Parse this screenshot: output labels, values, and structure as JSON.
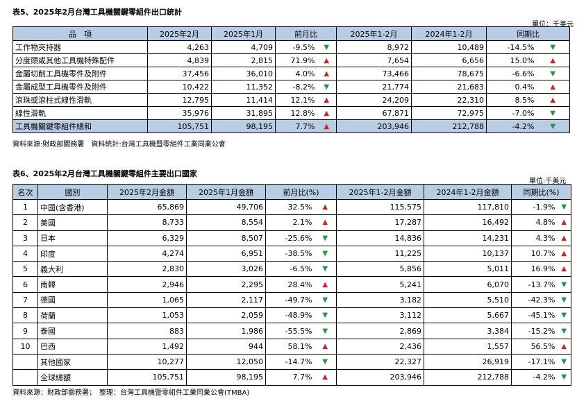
{
  "table5": {
    "caption": "表5、2025年2月台灣工具機關鍵零組件出口統計",
    "unit": "單位：千美元",
    "headers": [
      "品　項",
      "2025年2月",
      "2025年1月",
      "前月比",
      "2025年1-2月",
      "2024年1-2月",
      "同期比"
    ],
    "rows": [
      {
        "item": "工作物夾持器",
        "feb25": "4,263",
        "jan25": "4,709",
        "mom": "-9.5%",
        "mom_dir": "down",
        "ytd25": "8,972",
        "ytd24": "10,489",
        "yoy": "-14.5%",
        "yoy_dir": "down"
      },
      {
        "item": "分度頭或其他工具機特殊配件",
        "feb25": "4,839",
        "jan25": "2,815",
        "mom": "71.9%",
        "mom_dir": "up",
        "ytd25": "7,654",
        "ytd24": "6,656",
        "yoy": "15.0%",
        "yoy_dir": "up"
      },
      {
        "item": "金屬切削工具機零件及附件",
        "feb25": "37,456",
        "jan25": "36,010",
        "mom": "4.0%",
        "mom_dir": "up",
        "ytd25": "73,466",
        "ytd24": "78,675",
        "yoy": "-6.6%",
        "yoy_dir": "down"
      },
      {
        "item": "金屬成型工具機零件及附件",
        "feb25": "10,422",
        "jan25": "11,352",
        "mom": "-8.2%",
        "mom_dir": "down",
        "ytd25": "21,774",
        "ytd24": "21,683",
        "yoy": "0.4%",
        "yoy_dir": "up"
      },
      {
        "item": "滾珠或滾柱式線性滑軌",
        "feb25": "12,795",
        "jan25": "11,414",
        "mom": "12.1%",
        "mom_dir": "up",
        "ytd25": "24,209",
        "ytd24": "22,310",
        "yoy": "8.5%",
        "yoy_dir": "up"
      },
      {
        "item": "線性滑軌",
        "feb25": "35,976",
        "jan25": "31,895",
        "mom": "12.8%",
        "mom_dir": "up",
        "ytd25": "67,871",
        "ytd24": "72,975",
        "yoy": "-7.0%",
        "yoy_dir": "down"
      }
    ],
    "total": {
      "item": "工具機關鍵零組件總和",
      "feb25": "105,751",
      "jan25": "98,195",
      "mom": "7.7%",
      "mom_dir": "up",
      "ytd25": "203,946",
      "ytd24": "212,788",
      "yoy": "-4.2%",
      "yoy_dir": "down"
    },
    "source": "資料來源:財政部關務署　資料統計:台灣工具機暨零組件工業同業公會"
  },
  "table6": {
    "caption": "表6、2025年2月台灣工具機關鍵零組件主要出口國家",
    "unit": "單位:千美元",
    "headers": [
      "名次",
      "國別",
      "2025年2月金額",
      "2025年1月金額",
      "前月比(%)",
      "2025年1-2月金額",
      "2024年1-2月金額",
      "同期比(%)"
    ],
    "rows": [
      {
        "rank": "1",
        "country": "中國(含香港)",
        "feb25": "65,869",
        "jan25": "49,706",
        "mom": "32.5%",
        "mom_dir": "up",
        "ytd25": "115,575",
        "ytd24": "117,810",
        "yoy": "-1.9%",
        "yoy_dir": "down"
      },
      {
        "rank": "2",
        "country": "美國",
        "feb25": "8,733",
        "jan25": "8,554",
        "mom": "2.1%",
        "mom_dir": "up",
        "ytd25": "17,287",
        "ytd24": "16,492",
        "yoy": "4.8%",
        "yoy_dir": "up"
      },
      {
        "rank": "3",
        "country": "日本",
        "feb25": "6,329",
        "jan25": "8,507",
        "mom": "-25.6%",
        "mom_dir": "down",
        "ytd25": "14,836",
        "ytd24": "14,231",
        "yoy": "4.3%",
        "yoy_dir": "up"
      },
      {
        "rank": "4",
        "country": "印度",
        "feb25": "4,274",
        "jan25": "6,951",
        "mom": "-38.5%",
        "mom_dir": "down",
        "ytd25": "11,225",
        "ytd24": "10,137",
        "yoy": "10.7%",
        "yoy_dir": "up"
      },
      {
        "rank": "5",
        "country": "義大利",
        "feb25": "2,830",
        "jan25": "3,026",
        "mom": "-6.5%",
        "mom_dir": "down",
        "ytd25": "5,856",
        "ytd24": "5,011",
        "yoy": "16.9%",
        "yoy_dir": "up"
      },
      {
        "rank": "6",
        "country": "南韓",
        "feb25": "2,946",
        "jan25": "2,295",
        "mom": "28.4%",
        "mom_dir": "up",
        "ytd25": "5,241",
        "ytd24": "6,070",
        "yoy": "-13.7%",
        "yoy_dir": "down"
      },
      {
        "rank": "7",
        "country": "德國",
        "feb25": "1,065",
        "jan25": "2,117",
        "mom": "-49.7%",
        "mom_dir": "down",
        "ytd25": "3,182",
        "ytd24": "5,510",
        "yoy": "-42.3%",
        "yoy_dir": "down"
      },
      {
        "rank": "8",
        "country": "荷蘭",
        "feb25": "1,053",
        "jan25": "2,059",
        "mom": "-48.9%",
        "mom_dir": "down",
        "ytd25": "3,112",
        "ytd24": "5,667",
        "yoy": "-45.1%",
        "yoy_dir": "down"
      },
      {
        "rank": "9",
        "country": "泰國",
        "feb25": "883",
        "jan25": "1,986",
        "mom": "-55.5%",
        "mom_dir": "down",
        "ytd25": "2,869",
        "ytd24": "3,384",
        "yoy": "-15.2%",
        "yoy_dir": "down"
      },
      {
        "rank": "10",
        "country": "巴西",
        "feb25": "1,492",
        "jan25": "944",
        "mom": "58.1%",
        "mom_dir": "up",
        "ytd25": "2,436",
        "ytd24": "1,557",
        "yoy": "56.5%",
        "yoy_dir": "up"
      },
      {
        "rank": "",
        "country": "其他國家",
        "feb25": "10,277",
        "jan25": "12,050",
        "mom": "-14.7%",
        "mom_dir": "down",
        "ytd25": "22,327",
        "ytd24": "26,919",
        "yoy": "-17.1%",
        "yoy_dir": "down"
      },
      {
        "rank": "",
        "country": "全球總額",
        "feb25": "105,751",
        "jan25": "98,195",
        "mom": "7.7%",
        "mom_dir": "up",
        "ytd25": "203,946",
        "ytd24": "212,788",
        "yoy": "-4.2%",
        "yoy_dir": "down"
      }
    ],
    "source": "資料來源：財政部關務署；　整理：台灣工具機暨零組件工業同業公會(TMBA)"
  },
  "arrows": {
    "up": "▲",
    "down": "▼"
  },
  "colors": {
    "header_bg": "#b8cce4",
    "up": "#d22020",
    "down": "#1a9a3a"
  }
}
